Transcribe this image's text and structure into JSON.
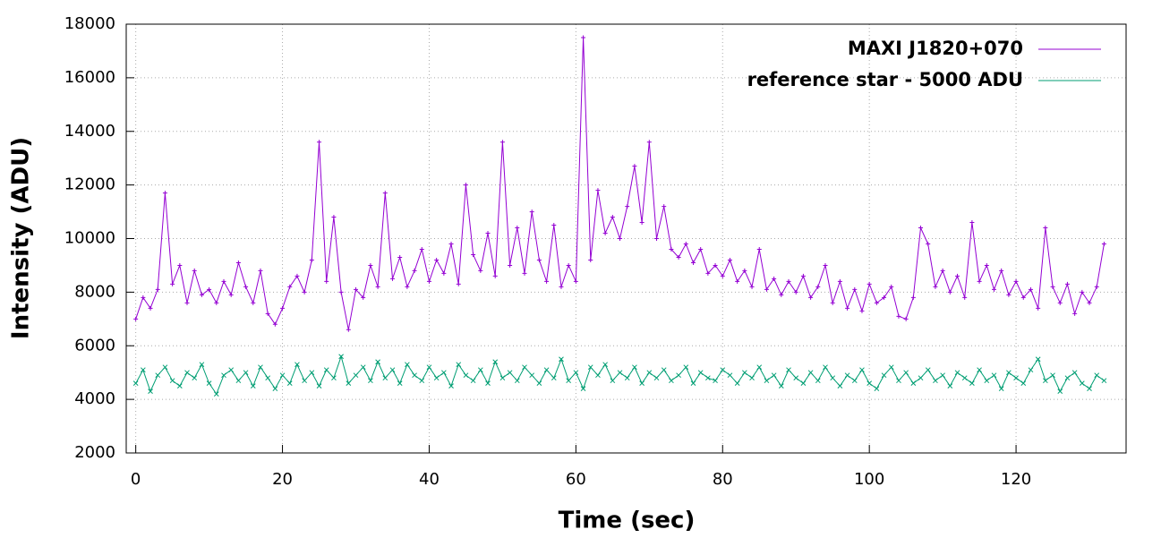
{
  "chart_data": {
    "type": "line",
    "xlabel": "Time (sec)",
    "ylabel": "Intensity (ADU)",
    "x": [
      0,
      1,
      2,
      3,
      4,
      5,
      6,
      7,
      8,
      9,
      10,
      11,
      12,
      13,
      14,
      15,
      16,
      17,
      18,
      19,
      20,
      21,
      22,
      23,
      24,
      25,
      26,
      27,
      28,
      29,
      30,
      31,
      32,
      33,
      34,
      35,
      36,
      37,
      38,
      39,
      40,
      41,
      42,
      43,
      44,
      45,
      46,
      47,
      48,
      49,
      50,
      51,
      52,
      53,
      54,
      55,
      56,
      57,
      58,
      59,
      60,
      61,
      62,
      63,
      64,
      65,
      66,
      67,
      68,
      69,
      70,
      71,
      72,
      73,
      74,
      75,
      76,
      77,
      78,
      79,
      80,
      81,
      82,
      83,
      84,
      85,
      86,
      87,
      88,
      89,
      90,
      91,
      92,
      93,
      94,
      95,
      96,
      97,
      98,
      99,
      100,
      101,
      102,
      103,
      104,
      105,
      106,
      107,
      108,
      109,
      110,
      111,
      112,
      113,
      114,
      115,
      116,
      117,
      118,
      119,
      120,
      121,
      122,
      123,
      124,
      125,
      126,
      127,
      128,
      129,
      130,
      131,
      132
    ],
    "series": [
      {
        "name": "MAXI J1820+070",
        "color": "#9400d3",
        "values": [
          7000,
          7800,
          7400,
          8100,
          11700,
          8300,
          9000,
          7600,
          8800,
          7900,
          8100,
          7600,
          8400,
          7900,
          9100,
          8200,
          7600,
          8800,
          7200,
          6800,
          7400,
          8200,
          8600,
          8000,
          9200,
          13600,
          8400,
          10800,
          8000,
          6600,
          8100,
          7800,
          9000,
          8200,
          11700,
          8500,
          9300,
          8200,
          8800,
          9600,
          8400,
          9200,
          8700,
          9800,
          8300,
          12000,
          9400,
          8800,
          10200,
          8600,
          13600,
          9000,
          10400,
          8700,
          11000,
          9200,
          8400,
          10500,
          8200,
          9000,
          8400,
          17500,
          9200,
          11800,
          10200,
          10800,
          10000,
          11200,
          12700,
          10600,
          13600,
          10000,
          11200,
          9600,
          9300,
          9800,
          9100,
          9600,
          8700,
          9000,
          8600,
          9200,
          8400,
          8800,
          8200,
          9600,
          8100,
          8500,
          7900,
          8400,
          8000,
          8600,
          7800,
          8200,
          9000,
          7600,
          8400,
          7400,
          8100,
          7300,
          8300,
          7600,
          7800,
          8200,
          7100,
          7000,
          7800,
          10400,
          9800,
          8200,
          8800,
          8000,
          8600,
          7800,
          10600,
          8400,
          9000,
          8100,
          8800,
          7900,
          8400,
          7800,
          8100,
          7400,
          10400,
          8200,
          7600,
          8300,
          7200,
          8000,
          7600,
          8200,
          9800
        ]
      },
      {
        "name": "reference star - 5000 ADU",
        "color": "#009e73",
        "values": [
          4600,
          5100,
          4300,
          4900,
          5200,
          4700,
          4500,
          5000,
          4800,
          5300,
          4600,
          4200,
          4900,
          5100,
          4700,
          5000,
          4500,
          5200,
          4800,
          4400,
          4900,
          4600,
          5300,
          4700,
          5000,
          4500,
          5100,
          4800,
          5600,
          4600,
          4900,
          5200,
          4700,
          5400,
          4800,
          5100,
          4600,
          5300,
          4900,
          4700,
          5200,
          4800,
          5000,
          4500,
          5300,
          4900,
          4700,
          5100,
          4600,
          5400,
          4800,
          5000,
          4700,
          5200,
          4900,
          4600,
          5100,
          4800,
          5500,
          4700,
          5000,
          4400,
          5200,
          4900,
          5300,
          4700,
          5000,
          4800,
          5200,
          4600,
          5000,
          4800,
          5100,
          4700,
          4900,
          5200,
          4600,
          5000,
          4800,
          4700,
          5100,
          4900,
          4600,
          5000,
          4800,
          5200,
          4700,
          4900,
          4500,
          5100,
          4800,
          4600,
          5000,
          4700,
          5200,
          4800,
          4500,
          4900,
          4700,
          5100,
          4600,
          4400,
          4900,
          5200,
          4700,
          5000,
          4600,
          4800,
          5100,
          4700,
          4900,
          4500,
          5000,
          4800,
          4600,
          5100,
          4700,
          4900,
          4400,
          5000,
          4800,
          4600,
          5100,
          5500,
          4700,
          4900,
          4300,
          4800,
          5000,
          4600,
          4400,
          4900,
          4700
        ]
      }
    ],
    "xlim": [
      -1.3,
      135
    ],
    "ylim": [
      2000,
      18000
    ],
    "xticks": [
      0,
      20,
      40,
      60,
      80,
      100,
      120
    ],
    "yticks": [
      2000,
      4000,
      6000,
      8000,
      10000,
      12000,
      14000,
      16000,
      18000
    ],
    "grid": true,
    "legend": "upper right"
  }
}
